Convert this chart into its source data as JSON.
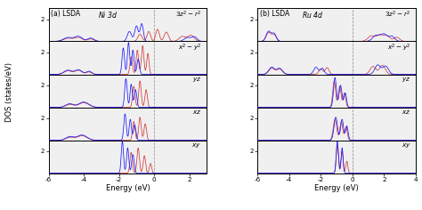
{
  "xlim_a": [
    -6,
    3
  ],
  "xlim_b": [
    -6,
    4
  ],
  "xticks_a": [
    -6,
    -4,
    -2,
    0,
    2
  ],
  "xticks_b": [
    -6,
    -4,
    -2,
    0,
    2,
    4
  ],
  "ylim_each": [
    0,
    3
  ],
  "ytick_val": 2,
  "ylabel": "DOS (states/eV)",
  "xlabel": "Energy (eV)",
  "blue_color": "#1a1aff",
  "red_color": "#cc2222",
  "dpi": 100,
  "figsize": [
    4.74,
    2.36
  ],
  "bg_color": "#f0f0f0"
}
